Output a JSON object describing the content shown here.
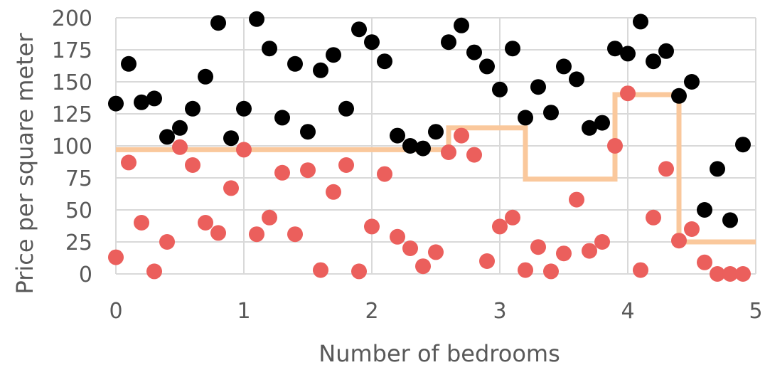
{
  "chart_data": {
    "type": "scatter",
    "title": "",
    "xlabel": "Number of bedrooms",
    "ylabel": "Price per square meter",
    "xlim": [
      0,
      5
    ],
    "ylim": [
      0,
      200
    ],
    "x_ticks": [
      "0",
      "1",
      "2",
      "3",
      "4",
      "5"
    ],
    "y_ticks": [
      "0",
      "25",
      "50",
      "75",
      "100",
      "125",
      "150",
      "175",
      "200"
    ],
    "grid": "vertical and horizontal",
    "legend": "none",
    "colors": {
      "black_points": "#000000",
      "red_points": "#eb5f5c",
      "step_line": "#fac89c",
      "grid": "#d9d9d9",
      "text": "#595959"
    },
    "series": [
      {
        "color": "#000000",
        "points": [
          [
            0.0,
            133
          ],
          [
            0.1,
            164
          ],
          [
            0.2,
            134
          ],
          [
            0.3,
            137
          ],
          [
            0.4,
            107
          ],
          [
            0.5,
            114
          ],
          [
            0.6,
            129
          ],
          [
            0.7,
            154
          ],
          [
            0.8,
            196
          ],
          [
            0.9,
            106
          ],
          [
            1.0,
            129
          ],
          [
            1.1,
            199
          ],
          [
            1.2,
            176
          ],
          [
            1.3,
            122
          ],
          [
            1.4,
            164
          ],
          [
            1.5,
            111
          ],
          [
            1.6,
            159
          ],
          [
            1.7,
            171
          ],
          [
            1.8,
            129
          ],
          [
            1.9,
            191
          ],
          [
            2.0,
            181
          ],
          [
            2.1,
            166
          ],
          [
            2.2,
            108
          ],
          [
            2.3,
            100
          ],
          [
            2.4,
            98
          ],
          [
            2.5,
            111
          ],
          [
            2.6,
            181
          ],
          [
            2.7,
            194
          ],
          [
            2.8,
            173
          ],
          [
            2.9,
            162
          ],
          [
            3.0,
            144
          ],
          [
            3.1,
            176
          ],
          [
            3.2,
            122
          ],
          [
            3.3,
            146
          ],
          [
            3.4,
            126
          ],
          [
            3.5,
            162
          ],
          [
            3.6,
            152
          ],
          [
            3.7,
            114
          ],
          [
            3.8,
            118
          ],
          [
            3.9,
            176
          ],
          [
            4.0,
            172
          ],
          [
            4.1,
            197
          ],
          [
            4.2,
            166
          ],
          [
            4.3,
            174
          ],
          [
            4.4,
            139
          ],
          [
            4.5,
            150
          ],
          [
            4.6,
            50
          ],
          [
            4.7,
            82
          ],
          [
            4.8,
            42
          ],
          [
            4.9,
            101
          ]
        ]
      },
      {
        "color": "#eb5f5c",
        "points": [
          [
            0.0,
            13
          ],
          [
            0.1,
            87
          ],
          [
            0.2,
            40
          ],
          [
            0.3,
            2
          ],
          [
            0.4,
            25
          ],
          [
            0.5,
            99
          ],
          [
            0.6,
            85
          ],
          [
            0.7,
            40
          ],
          [
            0.8,
            32
          ],
          [
            0.9,
            67
          ],
          [
            1.0,
            97
          ],
          [
            1.1,
            31
          ],
          [
            1.2,
            44
          ],
          [
            1.3,
            79
          ],
          [
            1.4,
            31
          ],
          [
            1.5,
            81
          ],
          [
            1.6,
            3
          ],
          [
            1.7,
            64
          ],
          [
            1.8,
            85
          ],
          [
            1.9,
            2
          ],
          [
            2.0,
            37
          ],
          [
            2.1,
            78
          ],
          [
            2.2,
            29
          ],
          [
            2.3,
            20
          ],
          [
            2.4,
            6
          ],
          [
            2.5,
            17
          ],
          [
            2.6,
            95
          ],
          [
            2.7,
            108
          ],
          [
            2.8,
            93
          ],
          [
            2.9,
            10
          ],
          [
            3.0,
            37
          ],
          [
            3.1,
            44
          ],
          [
            3.2,
            3
          ],
          [
            3.3,
            21
          ],
          [
            3.4,
            2
          ],
          [
            3.5,
            16
          ],
          [
            3.6,
            58
          ],
          [
            3.7,
            18
          ],
          [
            3.8,
            25
          ],
          [
            3.9,
            100
          ],
          [
            4.0,
            141
          ],
          [
            4.1,
            3
          ],
          [
            4.2,
            44
          ],
          [
            4.3,
            82
          ],
          [
            4.4,
            26
          ],
          [
            4.5,
            35
          ],
          [
            4.6,
            9
          ],
          [
            4.7,
            0
          ],
          [
            4.8,
            0
          ],
          [
            4.9,
            0
          ]
        ]
      },
      {
        "type": "step",
        "color": "#fac89c",
        "points": [
          [
            0.0,
            97
          ],
          [
            2.6,
            97
          ],
          [
            2.6,
            114
          ],
          [
            3.2,
            114
          ],
          [
            3.2,
            74
          ],
          [
            3.9,
            74
          ],
          [
            3.9,
            140
          ],
          [
            4.4,
            140
          ],
          [
            4.4,
            25
          ],
          [
            5.0,
            25
          ]
        ]
      }
    ]
  }
}
